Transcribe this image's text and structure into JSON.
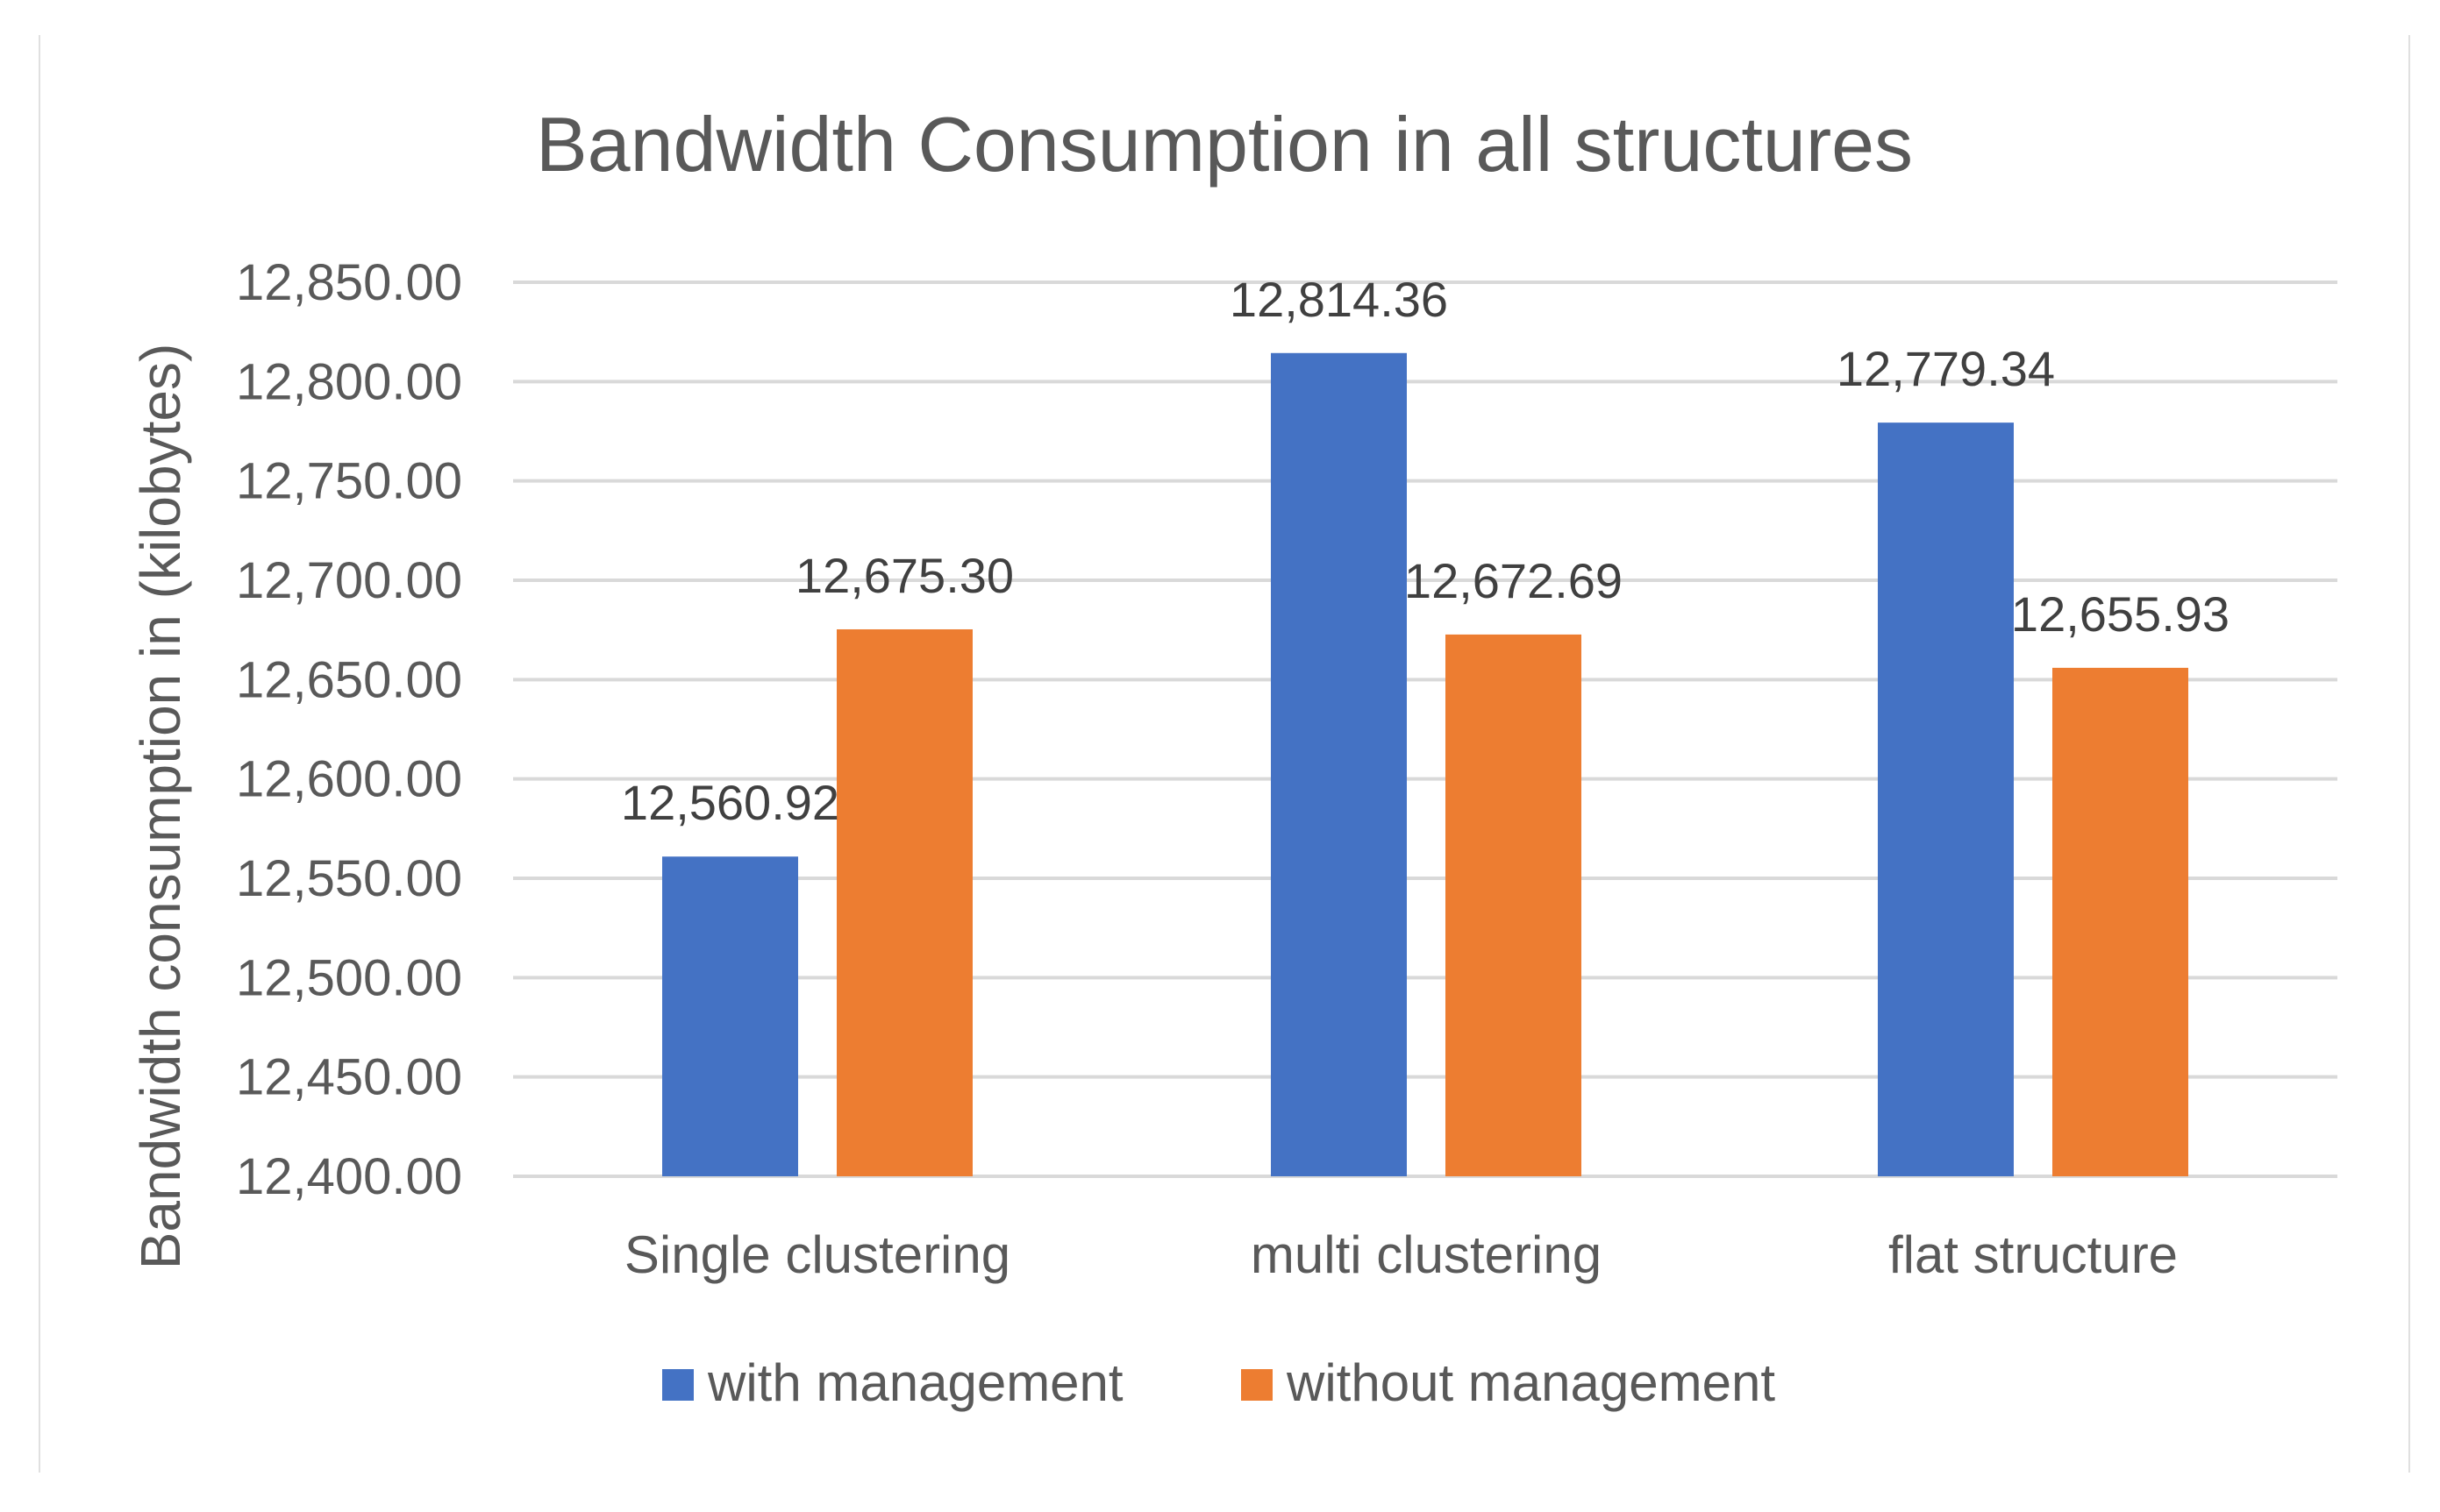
{
  "chart_data": {
    "type": "bar",
    "title": "Bandwidth Consumption in all structures",
    "xlabel": "",
    "ylabel": "Bandwidth consumption in (kilobytes)",
    "categories": [
      "Single clustering",
      "multi clustering",
      "flat structure"
    ],
    "series": [
      {
        "name": "with management",
        "color": "#4472C4",
        "values": [
          12560.92,
          12814.36,
          12779.34
        ]
      },
      {
        "name": "without management",
        "color": "#ED7D31",
        "values": [
          12675.3,
          12672.69,
          12655.93
        ]
      }
    ],
    "ylim": [
      12400,
      12850
    ],
    "yticks": [
      "12,400.00",
      "12,450.00",
      "12,500.00",
      "12,550.00",
      "12,600.00",
      "12,650.00",
      "12,700.00",
      "12,750.00",
      "12,800.00",
      "12,850.00"
    ],
    "data_labels": [
      [
        "12,560.92",
        "12,814.36",
        "12,779.34"
      ],
      [
        "12,675.30",
        "12,672.69",
        "12,655.93"
      ]
    ],
    "grid": true,
    "legend_position": "bottom"
  }
}
